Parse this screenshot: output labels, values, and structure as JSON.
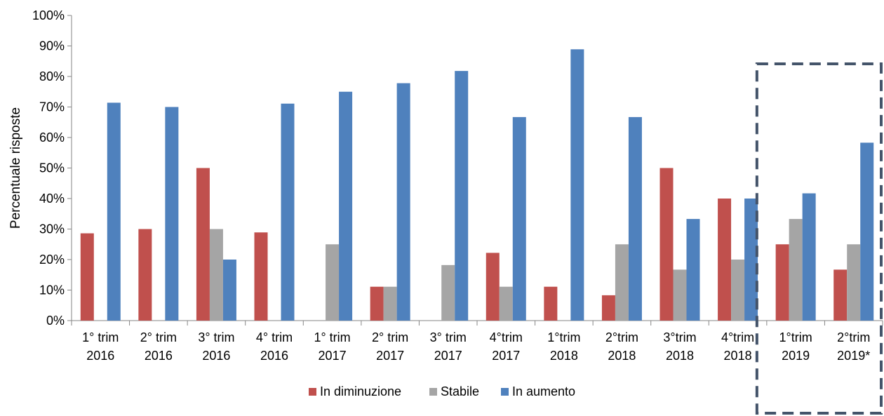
{
  "chart_data": {
    "type": "bar",
    "ylabel": "Percentuale risposte",
    "xlabel": "",
    "ylim": [
      0,
      100
    ],
    "yticks": [
      "0%",
      "10%",
      "20%",
      "30%",
      "40%",
      "50%",
      "60%",
      "70%",
      "80%",
      "90%",
      "100%"
    ],
    "categories": [
      [
        "1° trim",
        "2016"
      ],
      [
        "2° trim",
        "2016"
      ],
      [
        "3° trim",
        "2016"
      ],
      [
        "4° trim",
        "2016"
      ],
      [
        "1° trim",
        "2017"
      ],
      [
        "2° trim",
        "2017"
      ],
      [
        "3° trim",
        "2017"
      ],
      [
        "4°trim",
        "2017"
      ],
      [
        "1°trim",
        "2018"
      ],
      [
        "2°trim",
        "2018"
      ],
      [
        "3°trim",
        "2018"
      ],
      [
        "4°trim",
        "2018"
      ],
      [
        "1°trim",
        "2019"
      ],
      [
        "2°trim",
        "2019*"
      ]
    ],
    "series": [
      {
        "name": "In diminuzione",
        "color": "#c0504d",
        "values": [
          28.6,
          30,
          50,
          28.9,
          0,
          11.1,
          0,
          22.2,
          11.1,
          8.3,
          50,
          40,
          25,
          16.7
        ]
      },
      {
        "name": "Stabile",
        "color": "#a5a5a5",
        "values": [
          0,
          0,
          30,
          0,
          25,
          11.1,
          18.2,
          11.1,
          0,
          25,
          16.7,
          20,
          33.3,
          25
        ]
      },
      {
        "name": "In aumento",
        "color": "#4f81bd",
        "values": [
          71.4,
          70,
          20,
          71.1,
          75,
          77.8,
          81.8,
          66.7,
          88.9,
          66.7,
          33.3,
          40,
          41.7,
          58.3
        ]
      }
    ],
    "grid": false,
    "legend_position": "bottom",
    "highlight_box": {
      "style": "dashed",
      "color": "#44546a",
      "covers": [
        "1°trim 2019",
        "2°trim 2019*"
      ]
    }
  }
}
